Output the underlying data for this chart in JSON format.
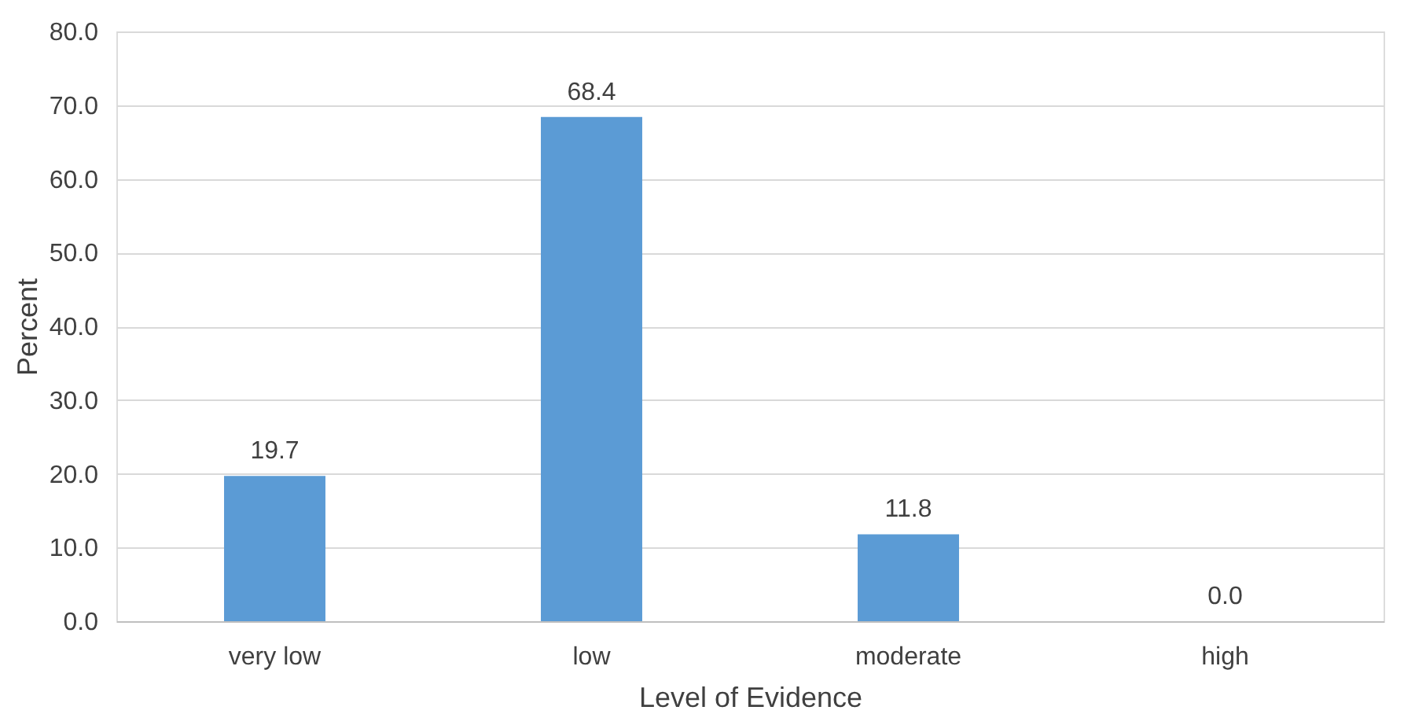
{
  "chart_data": {
    "type": "bar",
    "xlabel": "Level of Evidence",
    "ylabel": "Percent",
    "categories": [
      "very low",
      "low",
      "moderate",
      "high"
    ],
    "values": [
      19.7,
      68.4,
      11.8,
      0.0
    ],
    "value_labels": [
      "19.7",
      "68.4",
      "11.8",
      "0.0"
    ],
    "color": "#5b9bd5",
    "ylim": [
      0,
      80
    ],
    "yticks": [
      {
        "value": 0,
        "label": "0.0"
      },
      {
        "value": 10,
        "label": "10.0"
      },
      {
        "value": 20,
        "label": "20.0"
      },
      {
        "value": 30,
        "label": "30.0"
      },
      {
        "value": 40,
        "label": "40.0"
      },
      {
        "value": 50,
        "label": "50.0"
      },
      {
        "value": 60,
        "label": "60.0"
      },
      {
        "value": 70,
        "label": "70.0"
      },
      {
        "value": 80,
        "label": "80.0"
      }
    ],
    "grid": "y"
  }
}
